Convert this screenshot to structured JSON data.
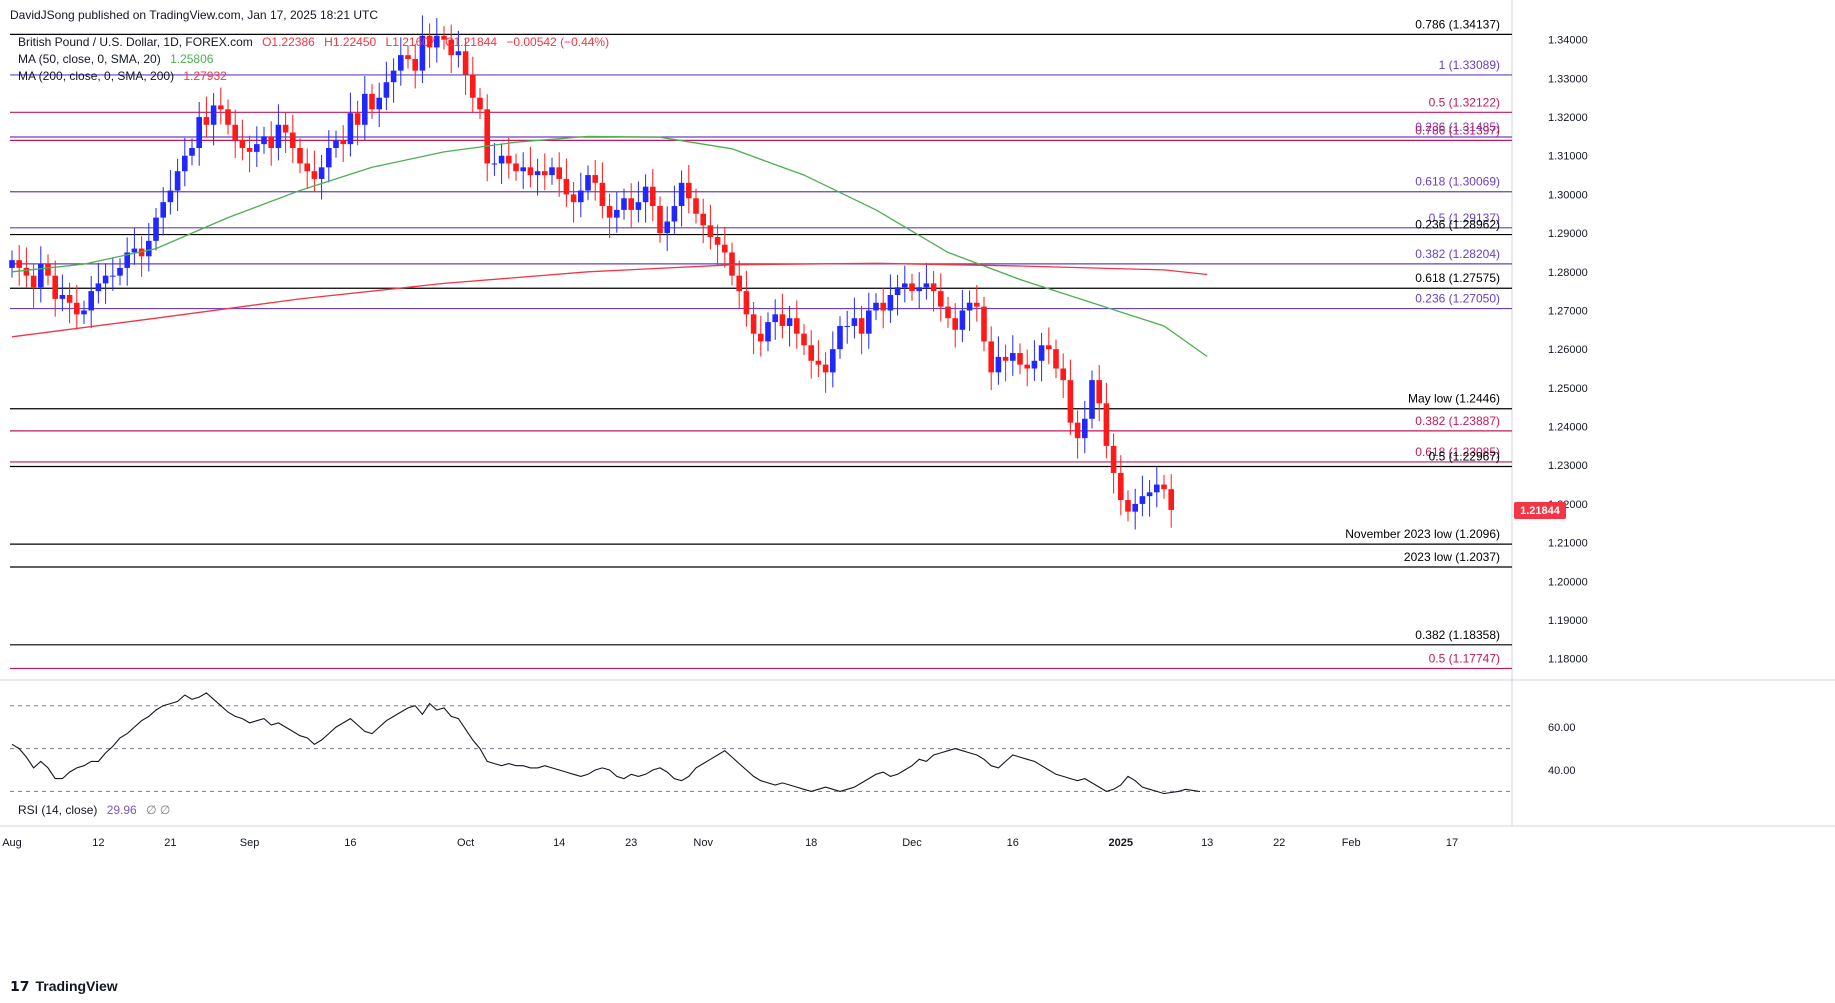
{
  "header": {
    "publisher": "DavidJSong published on TradingView.com, Jan 17, 2025 18:21 UTC",
    "symbol": "British Pound / U.S. Dollar, 1D, FOREX.com",
    "open": "O1.22386",
    "high": "H1.22450",
    "low": "L1.21607",
    "close": "C1.21844",
    "change": "−0.00542 (−0.44%)",
    "ma50_label": "MA (50, close, 0, SMA, 20)",
    "ma50_value": "1.25806",
    "ma200_label": "MA (200, close, 0, SMA, 200)",
    "ma200_value": "1.27932",
    "rsi_label": "RSI (14, close)",
    "rsi_value": "29.96",
    "rsi_extra": "∅  ∅"
  },
  "footer": {
    "brand": "TradingView"
  },
  "colors": {
    "up": "#2128ff",
    "down": "#ff1a1a",
    "ma50": "#4caf50",
    "ma200": "#f23645",
    "fib_purple": "#6a3fc1",
    "fib_red": "#c2185b",
    "black_line": "#000000",
    "rsi": "#131722"
  },
  "chart_data": [
    {
      "type": "candlestick",
      "title": "British Pound / U.S. Dollar, 1D, FOREX.com",
      "ylim": [
        1.175,
        1.3425
      ],
      "y_ticks": [
        1.34,
        1.33,
        1.32,
        1.31,
        1.3,
        1.29,
        1.28,
        1.27,
        1.26,
        1.25,
        1.24,
        1.23,
        1.22,
        1.21,
        1.2,
        1.19,
        1.18
      ],
      "x_ticks": [
        "Aug",
        "12",
        "21",
        "Sep",
        "16",
        "Oct",
        "14",
        "23",
        "Nov",
        "18",
        "Dec",
        "16",
        "2025",
        "13",
        "22",
        "Feb",
        "17"
      ],
      "x_tick_index": [
        0,
        12,
        22,
        33,
        47,
        63,
        76,
        86,
        96,
        111,
        125,
        139,
        154,
        166,
        176,
        186,
        200
      ],
      "last_price_label": "1.21844",
      "levels": [
        {
          "label": "0.786 (1.34137)",
          "value": 1.34137,
          "color": "#000000"
        },
        {
          "label": "1 (1.33089)",
          "value": 1.33089,
          "color": "#6a3fc1"
        },
        {
          "label": "0.5 (1.32122)",
          "value": 1.32122,
          "color": "#c2185b"
        },
        {
          "label": "0.236 (1.31485)",
          "value": 1.31485,
          "color": "#6a3fc1"
        },
        {
          "label": "0.786 (1.31397)",
          "value": 1.31397,
          "color": "#c2185b"
        },
        {
          "label": "0.618 (1.30069)",
          "value": 1.30069,
          "color": "#6a3fc1"
        },
        {
          "label": "0.5 (1.29137)",
          "value": 1.29137,
          "color": "#6a3fc1"
        },
        {
          "label": "0.236 (1.28962)",
          "value": 1.28962,
          "color": "#000000"
        },
        {
          "label": "0.382 (1.28204)",
          "value": 1.28204,
          "color": "#6a3fc1"
        },
        {
          "label": "0.618 (1.27575)",
          "value": 1.27575,
          "color": "#000000"
        },
        {
          "label": "0.236 (1.27050)",
          "value": 1.2705,
          "color": "#6a3fc1"
        },
        {
          "label": "May low (1.2446)",
          "value": 1.2446,
          "color": "#000000"
        },
        {
          "label": "0.382 (1.23887)",
          "value": 1.23887,
          "color": "#c2185b"
        },
        {
          "label": "0.618 (1.23085)",
          "value": 1.23085,
          "color": "#c2185b"
        },
        {
          "label": "0.5 (1.22967)",
          "value": 1.22967,
          "color": "#000000"
        },
        {
          "label": "November 2023 low (1.2096)",
          "value": 1.2096,
          "color": "#000000"
        },
        {
          "label": "2023 low (1.2037)",
          "value": 1.2037,
          "color": "#000000"
        },
        {
          "label": "0.382 (1.18358)",
          "value": 1.18358,
          "color": "#000000"
        },
        {
          "label": "0.5 (1.17747)",
          "value": 1.17747,
          "color": "#c2185b"
        }
      ],
      "closes": [
        1.283,
        1.281,
        1.279,
        1.276,
        1.282,
        1.279,
        1.273,
        1.274,
        1.272,
        1.269,
        1.27,
        1.275,
        1.277,
        1.279,
        1.279,
        1.281,
        1.285,
        1.286,
        1.284,
        1.288,
        1.294,
        1.298,
        1.301,
        1.306,
        1.31,
        1.312,
        1.32,
        1.318,
        1.323,
        1.322,
        1.318,
        1.314,
        1.312,
        1.311,
        1.313,
        1.315,
        1.312,
        1.318,
        1.316,
        1.312,
        1.308,
        1.306,
        1.304,
        1.307,
        1.312,
        1.314,
        1.313,
        1.321,
        1.318,
        1.326,
        1.322,
        1.325,
        1.329,
        1.332,
        1.336,
        1.335,
        1.332,
        1.341,
        1.338,
        1.341,
        1.34,
        1.336,
        1.337,
        1.331,
        1.325,
        1.322,
        1.308,
        1.308,
        1.31,
        1.308,
        1.306,
        1.307,
        1.305,
        1.306,
        1.305,
        1.307,
        1.304,
        1.3,
        1.298,
        1.301,
        1.305,
        1.303,
        1.297,
        1.294,
        1.296,
        1.299,
        1.296,
        1.298,
        1.302,
        1.297,
        1.29,
        1.293,
        1.297,
        1.303,
        1.299,
        1.295,
        1.292,
        1.289,
        1.287,
        1.285,
        1.279,
        1.275,
        1.269,
        1.264,
        1.262,
        1.267,
        1.269,
        1.266,
        1.268,
        1.264,
        1.261,
        1.257,
        1.256,
        1.254,
        1.26,
        1.266,
        1.266,
        1.268,
        1.264,
        1.27,
        1.272,
        1.27,
        1.274,
        1.276,
        1.277,
        1.275,
        1.276,
        1.277,
        1.275,
        1.271,
        1.268,
        1.265,
        1.27,
        1.272,
        1.271,
        1.262,
        1.254,
        1.258,
        1.257,
        1.259,
        1.256,
        1.255,
        1.257,
        1.261,
        1.26,
        1.255,
        1.252,
        1.241,
        1.237,
        1.242,
        1.252,
        1.246,
        1.235,
        1.228,
        1.221,
        1.218,
        1.22,
        1.222,
        1.223,
        1.225,
        1.2238,
        1.21844
      ],
      "series": [
        {
          "name": "MA (50, close, 0, SMA, 20)",
          "last": 1.25806,
          "points": [
            [
              0,
              1.28
            ],
            [
              10,
              1.282
            ],
            [
              20,
              1.286
            ],
            [
              30,
              1.294
            ],
            [
              40,
              1.301
            ],
            [
              50,
              1.307
            ],
            [
              60,
              1.311
            ],
            [
              70,
              1.3135
            ],
            [
              80,
              1.315
            ],
            [
              90,
              1.3148
            ],
            [
              100,
              1.3118
            ],
            [
              110,
              1.305
            ],
            [
              120,
              1.296
            ],
            [
              130,
              1.285
            ],
            [
              140,
              1.278
            ],
            [
              150,
              1.272
            ],
            [
              160,
              1.266
            ],
            [
              166,
              1.2581
            ]
          ]
        },
        {
          "name": "MA (200, close, 0, SMA, 200)",
          "last": 1.27932,
          "points": [
            [
              0,
              1.2632
            ],
            [
              20,
              1.268
            ],
            [
              40,
              1.273
            ],
            [
              60,
              1.277
            ],
            [
              80,
              1.28
            ],
            [
              100,
              1.2818
            ],
            [
              120,
              1.2822
            ],
            [
              140,
              1.2815
            ],
            [
              160,
              1.2805
            ],
            [
              166,
              1.2793
            ]
          ]
        }
      ]
    },
    {
      "type": "line",
      "title": "RSI (14, close)",
      "ylim": [
        26,
        82
      ],
      "y_ticks": [
        60,
        40
      ],
      "dashed_levels": [
        70,
        50,
        30
      ],
      "values": [
        52,
        50,
        46,
        41,
        44,
        41,
        36,
        36,
        39,
        41,
        42,
        44,
        44,
        48,
        51,
        55,
        57,
        60,
        63,
        65,
        68,
        70,
        71,
        72,
        75,
        73,
        74,
        76,
        73,
        70,
        67,
        65,
        64,
        62,
        63,
        64,
        61,
        62,
        60,
        58,
        56,
        55,
        52,
        54,
        57,
        60,
        62,
        64,
        61,
        58,
        57,
        60,
        63,
        65,
        67,
        69,
        70,
        66,
        71,
        68,
        69,
        65,
        64,
        59,
        54,
        50,
        44,
        43,
        42,
        43,
        42,
        42,
        41,
        41,
        42,
        41,
        40,
        39,
        38,
        37,
        38,
        40,
        41,
        40,
        37,
        36,
        38,
        37,
        38,
        40,
        41,
        39,
        36,
        35,
        37,
        41,
        43,
        45,
        47,
        49,
        46,
        43,
        40,
        37,
        35,
        34,
        33,
        34,
        33,
        32,
        31,
        30,
        31,
        32,
        31,
        30,
        31,
        32,
        34,
        36,
        38,
        39,
        37,
        38,
        40,
        42,
        45,
        44,
        47,
        48,
        49,
        50,
        49,
        48,
        47,
        45,
        42,
        41,
        44,
        47,
        46,
        45,
        44,
        42,
        40,
        38,
        37,
        36,
        35,
        36,
        34,
        32,
        30,
        31,
        33,
        37,
        35,
        32,
        31,
        30,
        29,
        29.5,
        30,
        31,
        30.5,
        29.96
      ]
    }
  ]
}
